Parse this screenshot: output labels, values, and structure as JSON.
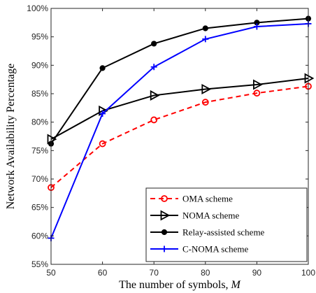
{
  "chart_data": {
    "type": "line",
    "title": "",
    "xlabel": "The number of symbols, M",
    "ylabel": "Network Availability Percentage",
    "x": [
      50,
      60,
      70,
      80,
      90,
      100
    ],
    "xlim": [
      50,
      100
    ],
    "ylim": [
      55,
      100
    ],
    "xticks": [
      "50",
      "60",
      "70",
      "80",
      "90",
      "100"
    ],
    "yticks": [
      "55%",
      "60%",
      "65%",
      "70%",
      "75%",
      "80%",
      "85%",
      "90%",
      "95%",
      "100%"
    ],
    "ytick_values": [
      55,
      60,
      65,
      70,
      75,
      80,
      85,
      90,
      95,
      100
    ],
    "grid": false,
    "legend_position": "bottom-right",
    "series": [
      {
        "name": "OMA scheme",
        "values": [
          68.5,
          76.2,
          80.4,
          83.5,
          85.1,
          86.3
        ],
        "color": "#ff0000",
        "dash": "dashed",
        "marker": "circle-open"
      },
      {
        "name": "NOMA scheme",
        "values": [
          77.0,
          82.0,
          84.7,
          85.8,
          86.6,
          87.7
        ],
        "color": "#000000",
        "dash": "solid",
        "marker": "triangle-right"
      },
      {
        "name": "Relay-assisted scheme",
        "values": [
          76.2,
          89.5,
          93.8,
          96.5,
          97.5,
          98.2
        ],
        "color": "#000000",
        "dash": "solid",
        "marker": "dot"
      },
      {
        "name": "C-NOMA scheme",
        "values": [
          59.6,
          81.5,
          89.7,
          94.6,
          96.8,
          97.3
        ],
        "color": "#0000ff",
        "dash": "solid",
        "marker": "plus"
      }
    ]
  }
}
